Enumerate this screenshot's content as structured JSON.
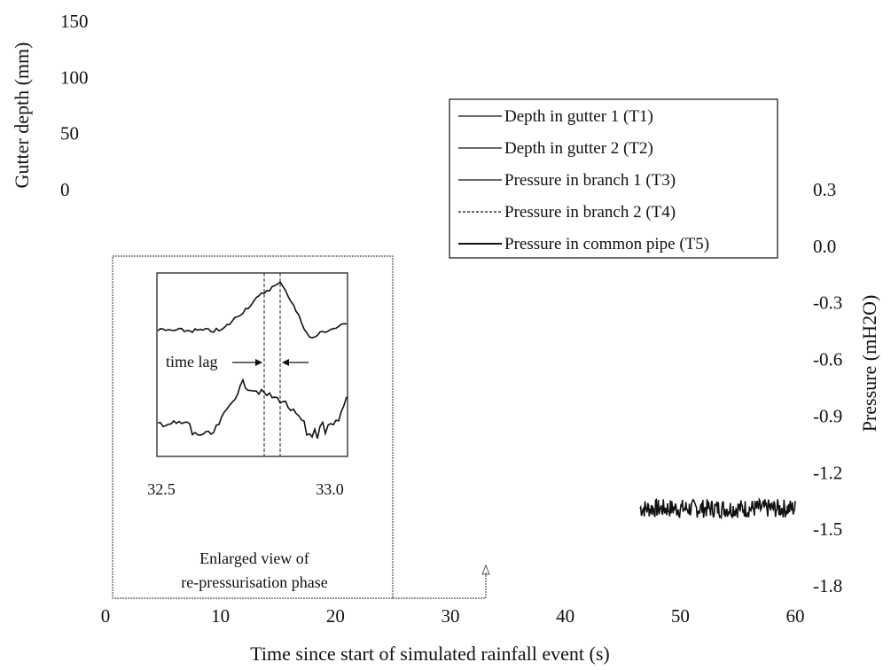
{
  "chart_data": {
    "type": "line",
    "x_axis": {
      "label": "Time since start of simulated rainfall event (s)",
      "ticks": [
        0,
        10,
        20,
        30,
        40,
        50,
        60
      ],
      "range": [
        0,
        60
      ]
    },
    "y_left": {
      "label": "Gutter depth (mm)",
      "ticks": [
        0,
        50,
        100,
        150
      ],
      "range": [
        0,
        150
      ]
    },
    "y_right": {
      "label": "Pressure (mH2O)",
      "ticks": [
        0.3,
        0.0,
        -0.3,
        -0.6,
        -0.9,
        -1.2,
        -1.5,
        -1.8
      ],
      "tick_labels": [
        "0.3",
        "0.0",
        "-0.3",
        "-0.6",
        "-0.9",
        "-1.2",
        "-1.5",
        "-1.8"
      ],
      "range": [
        -1.8,
        0.3
      ]
    },
    "legend": {
      "placement": "top-right",
      "entries": [
        "Depth in gutter 1 (T1)",
        "Depth in gutter 2 (T2)",
        "Pressure in branch 1 (T3)",
        "Pressure in branch 2 (T4)",
        "Pressure in common pipe (T5)"
      ]
    },
    "series": [
      {
        "name": "Pressure in common pipe (T5)",
        "axis": "right",
        "x_range": [
          46.5,
          60
        ],
        "mean": -1.39,
        "noise_amplitude": 0.05
      }
    ],
    "inset": {
      "x_ticks": [
        "32.5",
        "33.0"
      ],
      "annotation": "time lag",
      "caption_line1": "Enlarged view of",
      "caption_line2": "re-pressurisation phase"
    }
  }
}
